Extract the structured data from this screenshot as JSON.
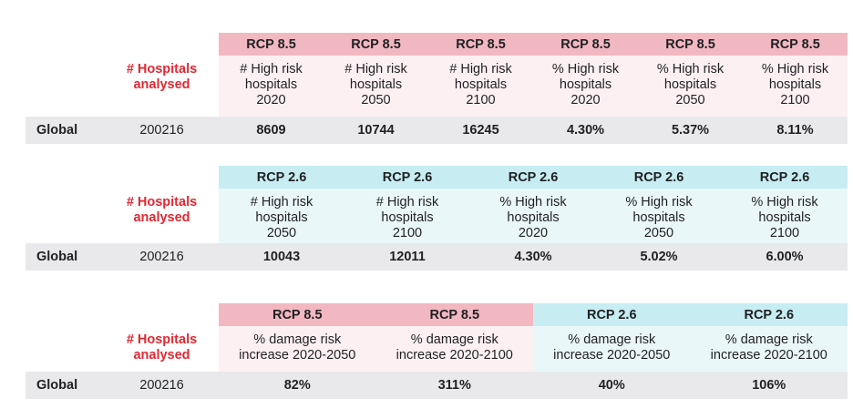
{
  "colors": {
    "rcp85_header": "#f2b8c1",
    "rcp85_subheader": "#fdf0f2",
    "rcp26_header": "#c7edf3",
    "rcp26_subheader": "#eaf7f9",
    "data_row_bg": "#e9e9eb",
    "accent_red": "#e12832",
    "text": "#1f2023"
  },
  "tables": [
    {
      "hospitals_header": "# Hospitals\nanalysed",
      "columns": [
        {
          "scenario": "RCP 8.5",
          "tone": "pink",
          "label": "# High risk\nhospitals\n2020"
        },
        {
          "scenario": "RCP 8.5",
          "tone": "pink",
          "label": "# High risk\nhospitals\n2050"
        },
        {
          "scenario": "RCP 8.5",
          "tone": "pink",
          "label": "# High risk\nhospitals\n2100"
        },
        {
          "scenario": "RCP 8.5",
          "tone": "pink",
          "label": "% High risk\nhospitals\n2020"
        },
        {
          "scenario": "RCP 8.5",
          "tone": "pink",
          "label": "% High risk\nhospitals\n2050"
        },
        {
          "scenario": "RCP 8.5",
          "tone": "pink",
          "label": "% High risk\nhospitals\n2100"
        }
      ],
      "rows": [
        {
          "label": "Global",
          "hospitals": "200216",
          "values": [
            "8609",
            "10744",
            "16245",
            "4.30%",
            "5.37%",
            "8.11%"
          ]
        }
      ]
    },
    {
      "hospitals_header": "# Hospitals\nanalysed",
      "columns": [
        {
          "scenario": "RCP 2.6",
          "tone": "cyan",
          "label": "# High risk\nhospitals\n2050"
        },
        {
          "scenario": "RCP 2.6",
          "tone": "cyan",
          "label": "# High risk\nhospitals\n2100"
        },
        {
          "scenario": "RCP 2.6",
          "tone": "cyan",
          "label": "% High risk\nhospitals\n2020"
        },
        {
          "scenario": "RCP 2.6",
          "tone": "cyan",
          "label": "% High risk\nhospitals\n2050"
        },
        {
          "scenario": "RCP 2.6",
          "tone": "cyan",
          "label": "% High risk\nhospitals\n2100"
        }
      ],
      "rows": [
        {
          "label": "Global",
          "hospitals": "200216",
          "values": [
            "10043",
            "12011",
            "4.30%",
            "5.02%",
            "6.00%"
          ]
        }
      ]
    },
    {
      "hospitals_header": "# Hospitals\nanalysed",
      "columns": [
        {
          "scenario": "RCP 8.5",
          "tone": "pink",
          "label": "% damage risk\nincrease 2020-2050"
        },
        {
          "scenario": "RCP 8.5",
          "tone": "pink",
          "label": "% damage risk\nincrease 2020-2100"
        },
        {
          "scenario": "RCP 2.6",
          "tone": "cyan",
          "label": "% damage risk\nincrease 2020-2050"
        },
        {
          "scenario": "RCP 2.6",
          "tone": "cyan",
          "label": "% damage risk\nincrease 2020-2100"
        }
      ],
      "rows": [
        {
          "label": "Global",
          "hospitals": "200216",
          "values": [
            "82%",
            "311%",
            "40%",
            "106%"
          ]
        }
      ]
    }
  ]
}
